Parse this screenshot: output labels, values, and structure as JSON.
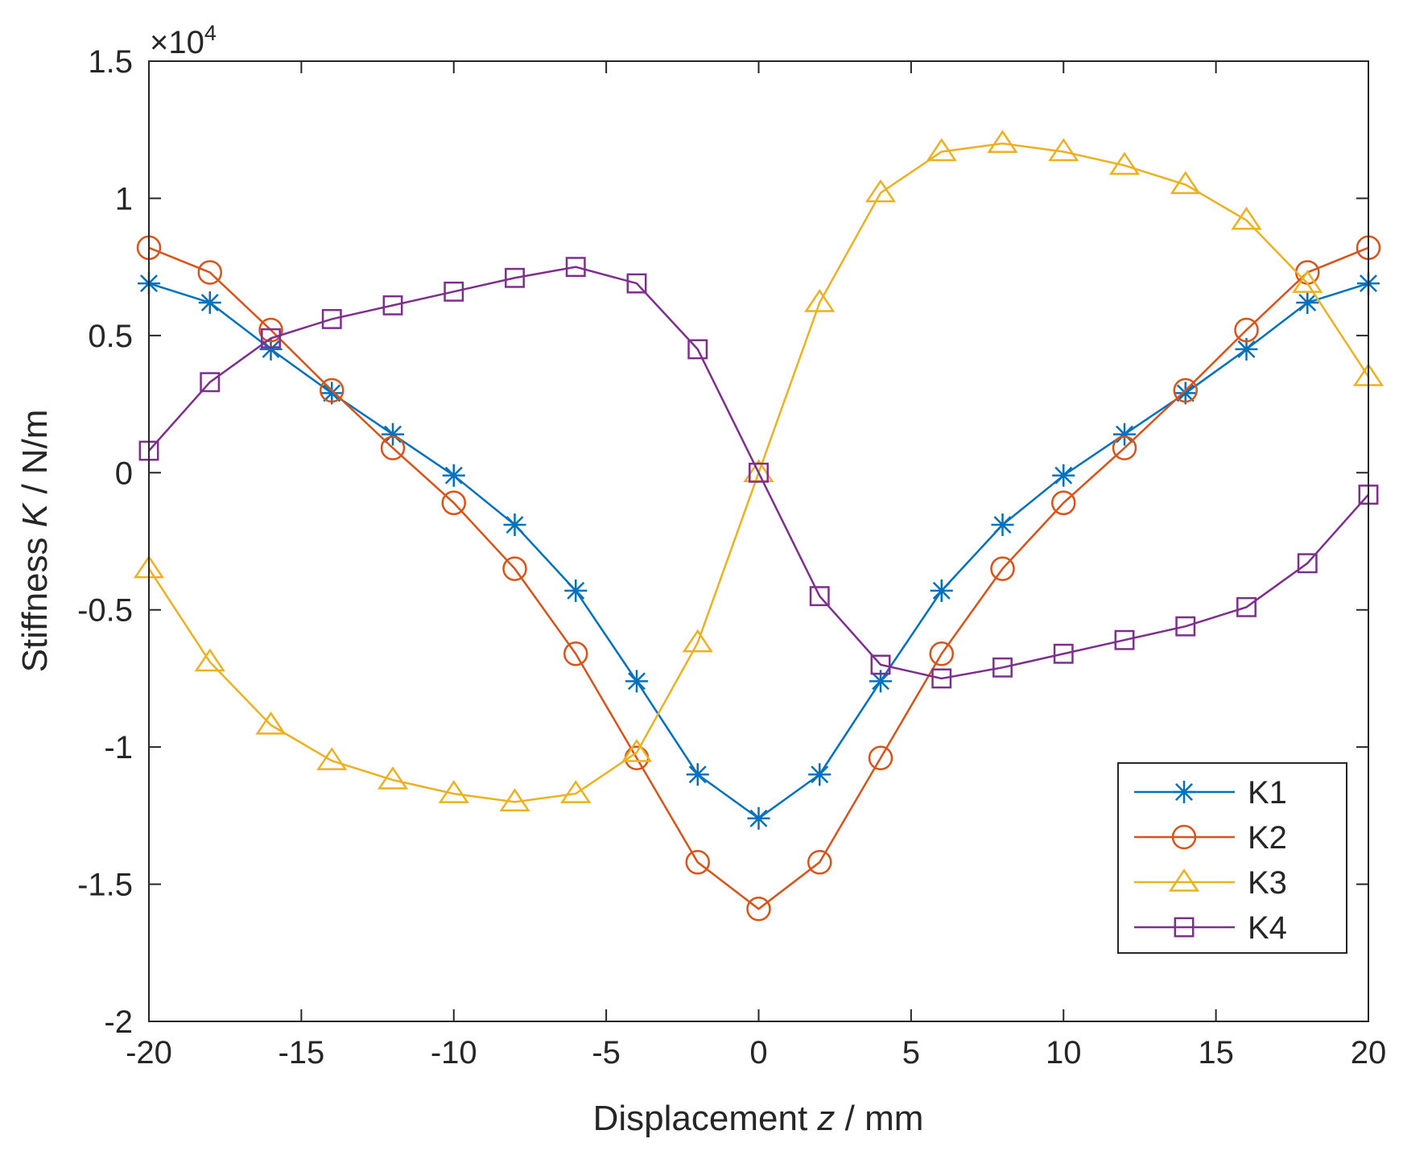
{
  "chart_data": {
    "type": "line",
    "xlabel_parts": [
      "Displacement ",
      "z",
      " / mm"
    ],
    "ylabel_parts": [
      "Stiffness ",
      "K",
      " / N/m"
    ],
    "y_exponent_base": "×10",
    "y_exponent_power": "4",
    "xlim": [
      -20,
      20
    ],
    "ylim": [
      -2,
      1.5
    ],
    "xticks": [
      -20,
      -15,
      -10,
      -5,
      0,
      5,
      10,
      15,
      20
    ],
    "yticks": [
      -2,
      -1.5,
      -1,
      -0.5,
      0,
      0.5,
      1,
      1.5
    ],
    "y_unit_multiplier": 10000,
    "grid": false,
    "legend_placement": "bottom-right",
    "x": [
      -20,
      -18,
      -16,
      -14,
      -12,
      -10,
      -8,
      -6,
      -4,
      -2,
      0,
      2,
      4,
      6,
      8,
      10,
      12,
      14,
      16,
      18,
      20
    ],
    "series": [
      {
        "name": "K1",
        "color": "#0072BD",
        "marker": "asterisk",
        "values": [
          0.69,
          0.62,
          0.45,
          0.29,
          0.14,
          -0.01,
          -0.19,
          -0.43,
          -0.76,
          -1.1,
          -1.26,
          -1.1,
          -0.76,
          -0.43,
          -0.19,
          -0.01,
          0.14,
          0.29,
          0.45,
          0.62,
          0.69
        ]
      },
      {
        "name": "K2",
        "color": "#D95319",
        "marker": "circle",
        "values": [
          0.82,
          0.73,
          0.52,
          0.3,
          0.09,
          -0.11,
          -0.35,
          -0.66,
          -1.04,
          -1.42,
          -1.59,
          -1.42,
          -1.04,
          -0.66,
          -0.35,
          -0.11,
          0.09,
          0.3,
          0.52,
          0.73,
          0.82
        ]
      },
      {
        "name": "K3",
        "color": "#EDB120",
        "marker": "triangle",
        "values": [
          -0.35,
          -0.69,
          -0.92,
          -1.05,
          -1.12,
          -1.17,
          -1.2,
          -1.17,
          -1.02,
          -0.62,
          0.0,
          0.62,
          1.02,
          1.17,
          1.2,
          1.17,
          1.12,
          1.05,
          0.92,
          0.69,
          0.35
        ]
      },
      {
        "name": "K4",
        "color": "#7E2F8E",
        "marker": "square",
        "values": [
          0.08,
          0.33,
          0.49,
          0.56,
          0.61,
          0.66,
          0.71,
          0.75,
          0.69,
          0.45,
          0.0,
          -0.45,
          -0.7,
          -0.75,
          -0.71,
          -0.66,
          -0.61,
          -0.56,
          -0.49,
          -0.33,
          -0.08
        ]
      }
    ]
  }
}
